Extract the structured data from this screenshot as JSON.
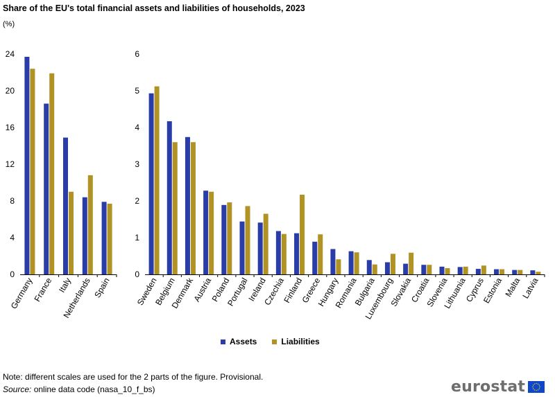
{
  "title": "Share of the EU's total financial assets and liabilities of households, 2023",
  "unit": "(%)",
  "legend": {
    "assets": "Assets",
    "liabilities": "Liabilities"
  },
  "colors": {
    "assets": "#2a3ca8",
    "liabilities": "#b09225",
    "axis": "#000000",
    "grid": "#d9d9d9",
    "logo_text": "#6d6e70",
    "eu_flag": "#0e47cb",
    "eu_stars": "#ffdd00"
  },
  "note": "Note: different scales are used for the 2 parts of the figure. Provisional.",
  "source_label": "Source:",
  "source_text": " online data code (nasa_10_f_bs)",
  "logo": {
    "text": "eurostat",
    "flag_icon": "eu-flag-icon"
  },
  "chart_data": [
    {
      "type": "bar",
      "categories": [
        "Germany",
        "France",
        "Italy",
        "Netherlands",
        "Spain"
      ],
      "series": [
        {
          "name": "Assets",
          "values": [
            23.7,
            18.6,
            14.9,
            8.4,
            7.9
          ]
        },
        {
          "name": "Liabilities",
          "values": [
            22.4,
            21.9,
            9.0,
            10.8,
            7.7
          ]
        }
      ],
      "ylim": [
        0,
        24
      ],
      "yticks": [
        0,
        4,
        8,
        12,
        16,
        20,
        24
      ],
      "grid": false
    },
    {
      "type": "bar",
      "categories": [
        "Sweden",
        "Belgium",
        "Denmark",
        "Austria",
        "Poland",
        "Portugal",
        "Ireland",
        "Czechia",
        "Finland",
        "Greece",
        "Hungary",
        "Romania",
        "Bulgaria",
        "Luxembourg",
        "Slovakia",
        "Croatia",
        "Slovenia",
        "Lithuania",
        "Cyprus",
        "Estonia",
        "Malta",
        "Latvia"
      ],
      "series": [
        {
          "name": "Assets",
          "values": [
            4.93,
            4.17,
            3.74,
            2.28,
            1.89,
            1.44,
            1.41,
            1.18,
            1.12,
            0.89,
            0.69,
            0.63,
            0.39,
            0.33,
            0.29,
            0.26,
            0.21,
            0.2,
            0.15,
            0.14,
            0.12,
            0.11
          ]
        },
        {
          "name": "Liabilities",
          "values": [
            5.12,
            3.6,
            3.6,
            2.25,
            1.96,
            1.86,
            1.65,
            1.1,
            2.17,
            1.09,
            0.41,
            0.6,
            0.27,
            0.56,
            0.59,
            0.26,
            0.17,
            0.21,
            0.24,
            0.14,
            0.12,
            0.07
          ]
        }
      ],
      "ylim": [
        0,
        6
      ],
      "yticks": [
        0,
        1,
        2,
        3,
        4,
        5,
        6
      ],
      "grid": false
    }
  ]
}
